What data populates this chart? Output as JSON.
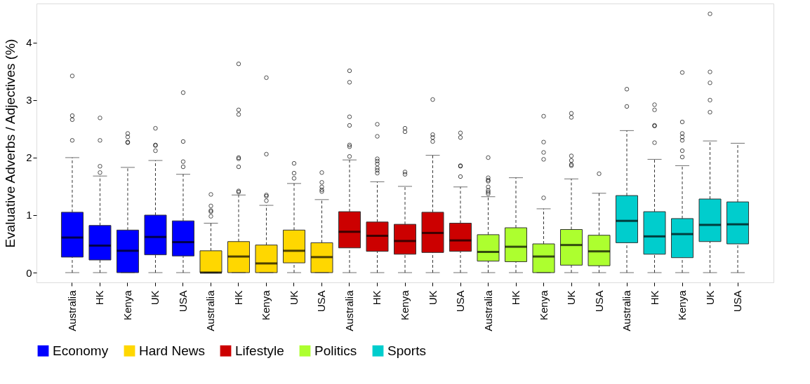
{
  "chart_data": {
    "type": "box",
    "ylabel": "Evaluative Adverbs / Adjectives (%)",
    "categories": [
      "Australia",
      "HK",
      "Kenya",
      "UK",
      "USA",
      "Australia",
      "HK",
      "Kenya",
      "UK",
      "USA",
      "Australia",
      "HK",
      "Kenya",
      "UK",
      "USA",
      "Australia",
      "HK",
      "Kenya",
      "UK",
      "USA",
      "Australia",
      "HK",
      "Kenya",
      "UK",
      "USA"
    ],
    "ylim": [
      -0.17,
      4.68
    ],
    "yticks": [
      0,
      1,
      2,
      3,
      4
    ],
    "grid": false,
    "legend": "bottom",
    "series": [
      {
        "name": "Economy",
        "color": "#0000ff",
        "boxes": [
          {
            "low": 0,
            "q1": 0.27,
            "median": 0.61,
            "q3": 1.05,
            "high": 2.0,
            "outliers": [
              3.42,
              2.73,
              2.66,
              2.3
            ]
          },
          {
            "low": 0,
            "q1": 0.22,
            "median": 0.47,
            "q3": 0.82,
            "high": 1.68,
            "outliers": [
              2.69,
              2.3,
              1.85,
              1.74
            ]
          },
          {
            "low": 0,
            "q1": 0,
            "median": 0.38,
            "q3": 0.74,
            "high": 1.83,
            "outliers": [
              2.42,
              2.36,
              2.27,
              2.26
            ]
          },
          {
            "low": 0,
            "q1": 0.31,
            "median": 0.62,
            "q3": 1.0,
            "high": 1.95,
            "outliers": [
              2.51,
              2.22,
              2.21,
              2.12
            ]
          },
          {
            "low": 0,
            "q1": 0.29,
            "median": 0.53,
            "q3": 0.9,
            "high": 1.71,
            "outliers": [
              3.13,
              2.28,
              1.93,
              1.84
            ]
          },
          null,
          null,
          null,
          null,
          null,
          null,
          null,
          null,
          null,
          null,
          null,
          null,
          null,
          null,
          null,
          null,
          null,
          null,
          null,
          null
        ]
      },
      {
        "name": "Hard News",
        "color": "#ffd700",
        "boxes": [
          null,
          null,
          null,
          null,
          null,
          {
            "low": 0,
            "q1": 0,
            "median": 0,
            "q3": 0.38,
            "high": 0.86,
            "outliers": [
              1.36,
              1.16,
              1.08,
              1.06,
              0.98
            ]
          },
          {
            "low": 0,
            "q1": 0,
            "median": 0.28,
            "q3": 0.54,
            "high": 1.35,
            "outliers": [
              3.63,
              2.83,
              2.75,
              2.0,
              1.98,
              1.84,
              1.42,
              1.4
            ]
          },
          {
            "low": 0,
            "q1": 0,
            "median": 0.16,
            "q3": 0.48,
            "high": 1.17,
            "outliers": [
              3.39,
              2.06,
              1.35,
              1.33,
              1.25
            ]
          },
          {
            "low": 0,
            "q1": 0.17,
            "median": 0.38,
            "q3": 0.74,
            "high": 1.55,
            "outliers": [
              1.9,
              1.73,
              1.64
            ]
          },
          {
            "low": 0,
            "q1": 0,
            "median": 0.27,
            "q3": 0.52,
            "high": 1.27,
            "outliers": [
              1.74,
              1.57,
              1.49,
              1.44,
              1.41
            ]
          },
          null,
          null,
          null,
          null,
          null,
          null,
          null,
          null,
          null,
          null,
          null,
          null,
          null,
          null,
          null
        ]
      },
      {
        "name": "Lifestyle",
        "color": "#cc0000",
        "boxes": [
          null,
          null,
          null,
          null,
          null,
          null,
          null,
          null,
          null,
          null,
          {
            "low": 0,
            "q1": 0.43,
            "median": 0.71,
            "q3": 1.06,
            "high": 1.96,
            "outliers": [
              3.51,
              3.31,
              2.71,
              2.56,
              2.22,
              2.19,
              2.02
            ]
          },
          {
            "low": 0,
            "q1": 0.37,
            "median": 0.64,
            "q3": 0.88,
            "high": 1.58,
            "outliers": [
              2.58,
              2.37,
              1.98,
              1.94,
              1.89,
              1.82,
              1.78,
              1.73
            ]
          },
          {
            "low": 0,
            "q1": 0.32,
            "median": 0.55,
            "q3": 0.84,
            "high": 1.5,
            "outliers": [
              2.51,
              2.45,
              1.75,
              1.71
            ]
          },
          {
            "low": 0,
            "q1": 0.35,
            "median": 0.69,
            "q3": 1.05,
            "high": 2.04,
            "outliers": [
              3.01,
              2.4,
              2.35,
              2.28
            ]
          },
          {
            "low": 0,
            "q1": 0.37,
            "median": 0.56,
            "q3": 0.86,
            "high": 1.49,
            "outliers": [
              2.43,
              2.35,
              1.86,
              1.85,
              1.67
            ]
          },
          null,
          null,
          null,
          null,
          null,
          null,
          null,
          null,
          null,
          null
        ]
      },
      {
        "name": "Politics",
        "color": "#adff2f",
        "boxes": [
          null,
          null,
          null,
          null,
          null,
          null,
          null,
          null,
          null,
          null,
          null,
          null,
          null,
          null,
          null,
          {
            "low": 0,
            "q1": 0.2,
            "median": 0.36,
            "q3": 0.66,
            "high": 1.32,
            "outliers": [
              2.0,
              1.65,
              1.61,
              1.59,
              1.49,
              1.43,
              1.4,
              1.37
            ]
          },
          {
            "low": 0,
            "q1": 0.19,
            "median": 0.45,
            "q3": 0.78,
            "high": 1.65
          },
          {
            "low": 0,
            "q1": 0,
            "median": 0.28,
            "q3": 0.5,
            "high": 1.11,
            "outliers": [
              2.72,
              2.27,
              2.09,
              1.97,
              1.3
            ]
          },
          {
            "low": 0,
            "q1": 0.13,
            "median": 0.48,
            "q3": 0.75,
            "high": 1.63,
            "outliers": [
              2.77,
              2.7,
              2.03,
              1.95,
              1.88,
              1.86
            ]
          },
          {
            "low": 0,
            "q1": 0.12,
            "median": 0.37,
            "q3": 0.65,
            "high": 1.38,
            "outliers": [
              1.72
            ]
          },
          null,
          null,
          null,
          null,
          null
        ]
      },
      {
        "name": "Sports",
        "color": "#00cdcd",
        "boxes": [
          null,
          null,
          null,
          null,
          null,
          null,
          null,
          null,
          null,
          null,
          null,
          null,
          null,
          null,
          null,
          null,
          null,
          null,
          null,
          null,
          {
            "low": 0,
            "q1": 0.52,
            "median": 0.9,
            "q3": 1.34,
            "high": 2.47,
            "outliers": [
              3.19,
              2.89
            ]
          },
          {
            "low": 0,
            "q1": 0.32,
            "median": 0.63,
            "q3": 1.06,
            "high": 1.97,
            "outliers": [
              2.92,
              2.83,
              2.56,
              2.55,
              2.26
            ]
          },
          {
            "low": 0,
            "q1": 0.26,
            "median": 0.67,
            "q3": 0.94,
            "high": 1.86,
            "outliers": [
              3.48,
              2.62,
              2.42,
              2.36,
              2.3,
              2.12,
              2.01
            ]
          },
          {
            "low": 0,
            "q1": 0.54,
            "median": 0.83,
            "q3": 1.28,
            "high": 2.29,
            "outliers": [
              4.5,
              3.49,
              3.3,
              3.0,
              2.79
            ]
          },
          {
            "low": 0,
            "q1": 0.5,
            "median": 0.84,
            "q3": 1.23,
            "high": 2.25
          }
        ]
      }
    ]
  }
}
